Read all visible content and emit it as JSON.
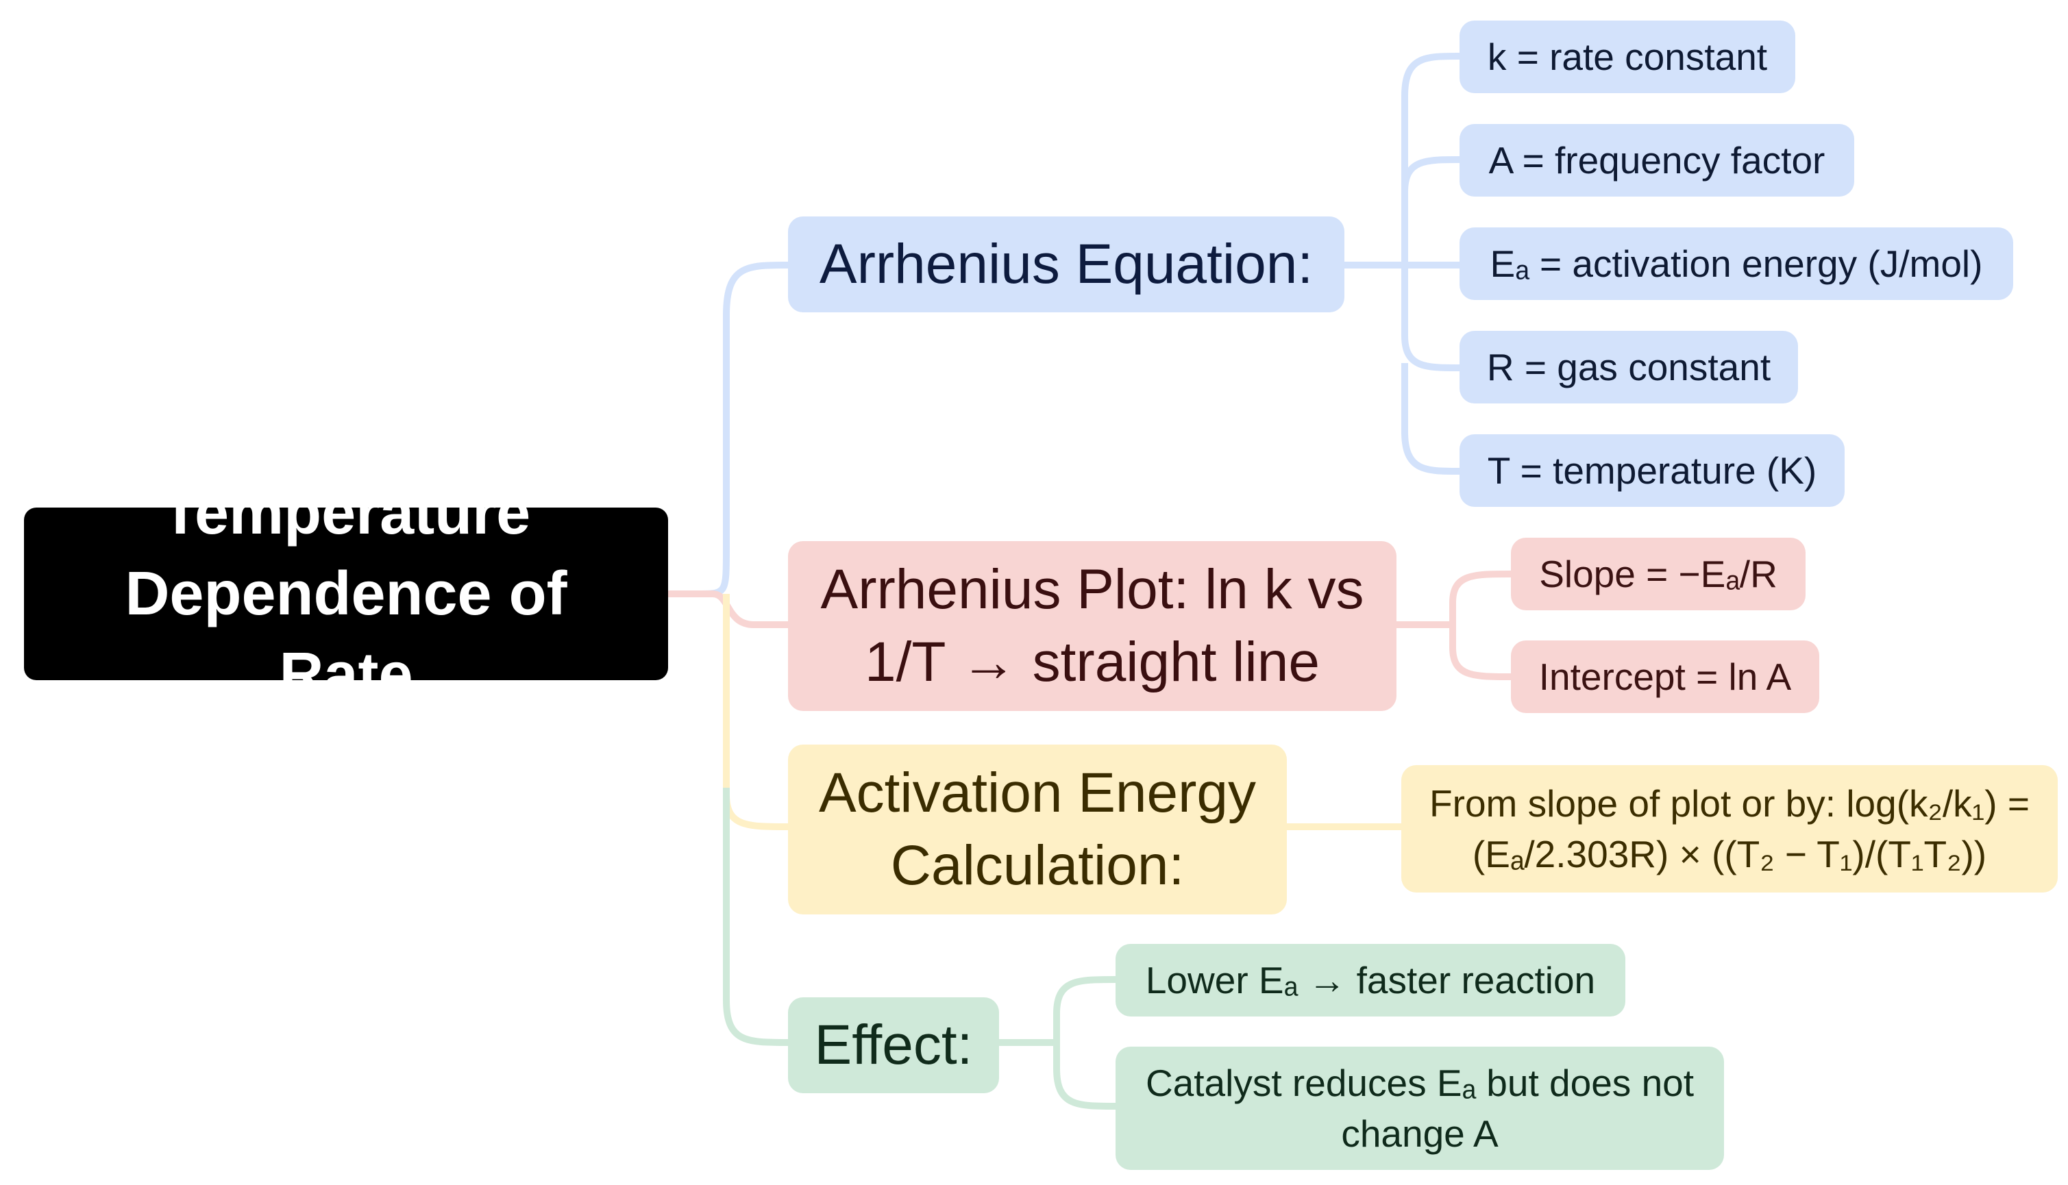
{
  "root": {
    "label": "Temperature Dependence of Rate"
  },
  "branches": {
    "arrhenius_equation": {
      "label": "Arrhenius Equation:",
      "color": "#d3e2fb",
      "children": [
        "k = rate constant",
        "A = frequency factor",
        "Eₐ = activation energy (J/mol)",
        "R = gas constant",
        "T = temperature (K)"
      ]
    },
    "arrhenius_plot": {
      "label_line1": "Arrhenius Plot: ln k vs",
      "label_line2": "1/T → straight line",
      "color": "#f8d5d3",
      "children": [
        "Slope = −Eₐ/R",
        "Intercept = ln A"
      ]
    },
    "activation_energy": {
      "label_line1": "Activation Energy",
      "label_line2": "Calculation:",
      "color": "#fef0c6",
      "children": [
        {
          "line1": "From slope of plot or by: log(k₂/k₁) =",
          "line2": "(Eₐ/2.303R) × ((T₂ − T₁)/(T₁T₂))"
        }
      ]
    },
    "effect": {
      "label": "Effect:",
      "color": "#cfe9d9",
      "children": [
        "Lower Eₐ → faster reaction",
        {
          "line1": "Catalyst reduces Eₐ but does not",
          "line2": "change A"
        }
      ]
    }
  },
  "edge_colors": {
    "blue": "#d3e2fb",
    "red": "#f8d5d3",
    "yellow": "#fef0c6",
    "green": "#cfe9d9"
  }
}
